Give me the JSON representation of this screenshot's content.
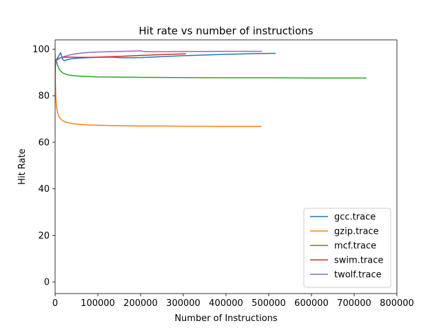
{
  "chart_data": {
    "type": "line",
    "title": "Hit rate vs number of instructions",
    "xlabel": "Number of Instructions",
    "ylabel": "Hit Rate",
    "xlim": [
      0,
      800000
    ],
    "ylim": [
      -5,
      104
    ],
    "xticks": [
      0,
      100000,
      200000,
      300000,
      400000,
      500000,
      600000,
      700000,
      800000
    ],
    "yticks": [
      0,
      20,
      40,
      60,
      80,
      100
    ],
    "grid": false,
    "legend_position": "bottom-right",
    "series": [
      {
        "name": "gcc.trace",
        "color": "#1f77b4",
        "x": [
          0,
          500,
          1500,
          3000,
          5000,
          8000,
          11000,
          13000,
          15000,
          18000,
          22000,
          28000,
          35000,
          45000,
          60000,
          80000,
          100000,
          130000,
          160000,
          200000,
          250000,
          300000,
          350000,
          400000,
          450000,
          500000,
          515000
        ],
        "y": [
          88,
          93,
          94.5,
          95.5,
          96,
          97,
          98,
          98.5,
          97,
          95.5,
          95,
          95.5,
          95.8,
          96,
          96.2,
          96.4,
          96.5,
          96.6,
          96.3,
          96.4,
          96.8,
          97.2,
          97.5,
          97.8,
          98,
          98.2,
          98.2
        ]
      },
      {
        "name": "gzip.trace",
        "color": "#ff7f0e",
        "x": [
          0,
          300,
          800,
          1500,
          2500,
          4000,
          6000,
          9000,
          13000,
          18000,
          25000,
          35000,
          50000,
          70000,
          100000,
          150000,
          200000,
          250000,
          300000,
          350000,
          400000,
          450000,
          482000
        ],
        "y": [
          98,
          88,
          84,
          80,
          77,
          74.5,
          72.5,
          71,
          70,
          69.3,
          68.7,
          68.2,
          67.8,
          67.5,
          67.3,
          67.1,
          67,
          67,
          66.9,
          66.9,
          66.8,
          66.8,
          66.8
        ],
        "note": ""
      },
      {
        "name": "mcf.trace",
        "color": "#2ca02c",
        "x": [
          0,
          1000,
          3000,
          5000,
          8000,
          12000,
          18000,
          25000,
          35000,
          50000,
          70000,
          100000,
          150000,
          200000,
          300000,
          400000,
          500000,
          600000,
          700000,
          728000
        ],
        "y": [
          90,
          95.5,
          95,
          93.5,
          92,
          90.8,
          89.8,
          89.2,
          88.8,
          88.5,
          88.3,
          88.1,
          88,
          87.9,
          87.8,
          87.7,
          87.7,
          87.6,
          87.6,
          87.6
        ]
      },
      {
        "name": "swim.trace",
        "color": "#d62728",
        "x": [
          0,
          1000,
          3000,
          6000,
          10000,
          15000,
          20000,
          30000,
          50000,
          80000,
          120000,
          160000,
          200000,
          250000,
          305000
        ],
        "y": [
          92,
          94,
          95,
          95.8,
          96.2,
          96.4,
          96.5,
          96.6,
          96.5,
          96.5,
          96.7,
          97,
          97.3,
          97.7,
          98
        ]
      },
      {
        "name": "twolf.trace",
        "color": "#9467bd",
        "x": [
          0,
          1000,
          3000,
          6000,
          10000,
          15000,
          20000,
          30000,
          40000,
          60000,
          80000,
          100000,
          150000,
          200000,
          210000,
          250000,
          300000,
          350000,
          400000,
          450000,
          483000
        ],
        "y": [
          93,
          94,
          95,
          95.5,
          96,
          96.5,
          96.8,
          97.3,
          97.8,
          98.3,
          98.6,
          98.8,
          99,
          99.3,
          98.9,
          98.9,
          99,
          99,
          99.1,
          99.1,
          99.1
        ]
      }
    ]
  }
}
